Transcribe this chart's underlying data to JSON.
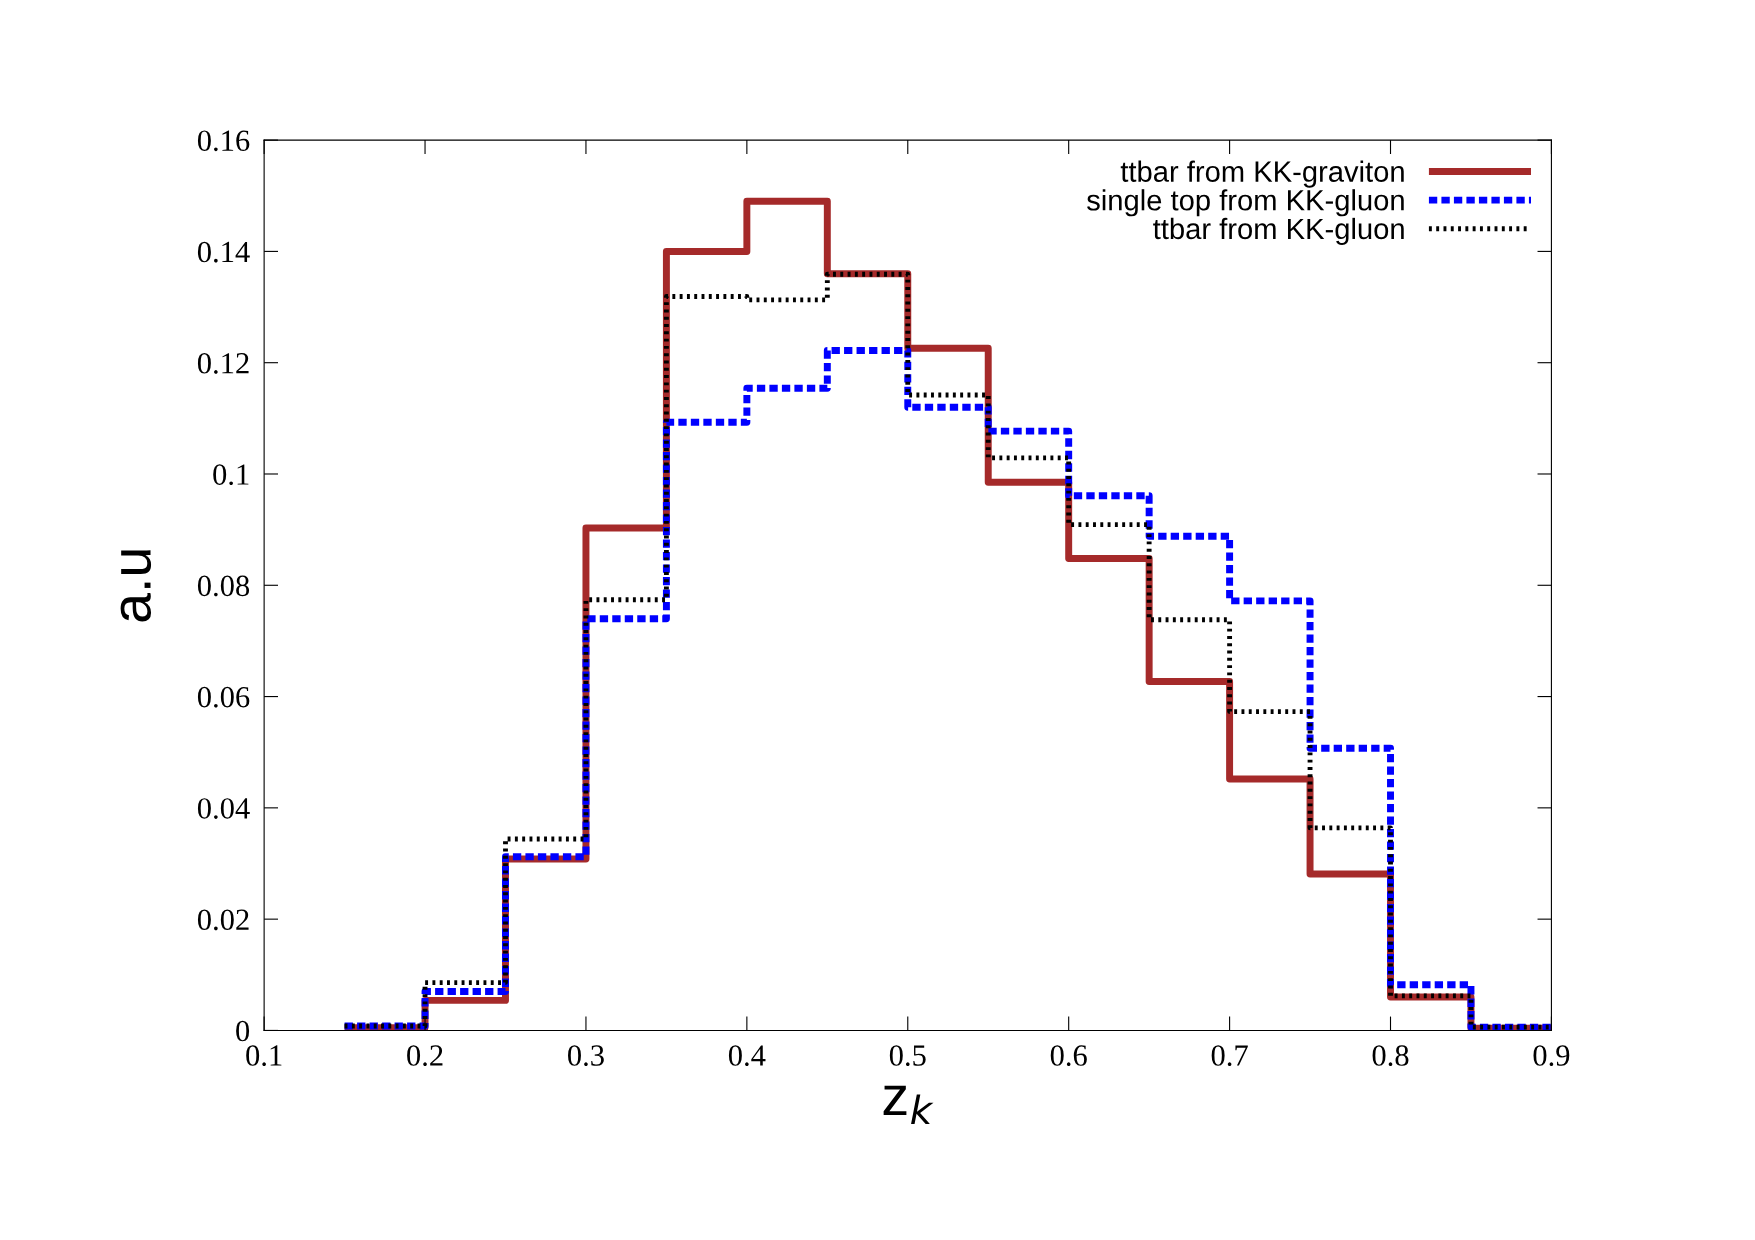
{
  "chart_data": {
    "type": "histogram",
    "xlabel": "z$_{k}$",
    "ylabel": "a.u",
    "bins": [
      0.15,
      0.2,
      0.25,
      0.3,
      0.35,
      0.4,
      0.45,
      0.5,
      0.55,
      0.6,
      0.65,
      0.7,
      0.75,
      0.8,
      0.85,
      0.9
    ],
    "series": [
      {
        "name": "ttbar from KK-graviton",
        "color": "#a52a2a",
        "line_style": "solid",
        "values": [
          0.0005,
          0.0054,
          0.0308,
          0.0903,
          0.14,
          0.149,
          0.136,
          0.1226,
          0.0985,
          0.0848,
          0.0627,
          0.0452,
          0.0281,
          0.006,
          0.0004
        ]
      },
      {
        "name": "single top from KK-gluon",
        "color": "#0000ff",
        "line_style": "dashed",
        "values": [
          0.0008,
          0.007,
          0.0312,
          0.074,
          0.1093,
          0.1154,
          0.1222,
          0.112,
          0.1077,
          0.0961,
          0.0888,
          0.0772,
          0.0507,
          0.0082,
          0.0006
        ]
      },
      {
        "name": "ttbar from KK-gluon",
        "color": "#000000",
        "line_style": "dotted",
        "values": [
          0.0008,
          0.0086,
          0.0344,
          0.0774,
          0.1319,
          0.1313,
          0.1359,
          0.1142,
          0.1029,
          0.0909,
          0.0738,
          0.0573,
          0.0364,
          0.0062,
          0.0006
        ]
      }
    ],
    "xlim": [
      0.1,
      0.9
    ],
    "xticks": [
      0.1,
      0.2,
      0.3,
      0.4,
      0.5,
      0.6,
      0.7,
      0.8,
      0.9
    ],
    "ylim": [
      0,
      0.16
    ],
    "yticks": [
      0,
      0.02,
      0.04,
      0.06,
      0.08,
      0.1,
      0.12,
      0.14,
      0.16
    ],
    "grid": false,
    "legend": "top right"
  }
}
